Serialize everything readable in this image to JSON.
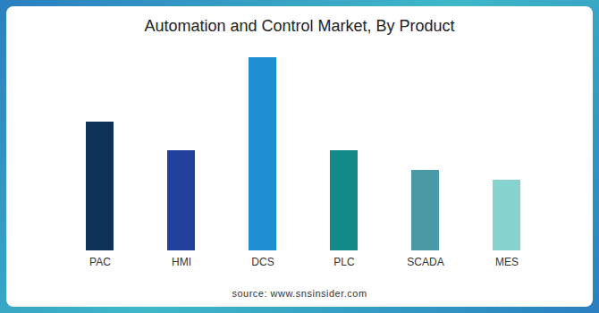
{
  "chart_data": {
    "type": "bar",
    "title": "Automation and Control Market, By Product",
    "categories": [
      "PAC",
      "HMI",
      "DCS",
      "PLC",
      "SCADA",
      "MES"
    ],
    "values": [
      144,
      112,
      216,
      112,
      90,
      79
    ],
    "colors": [
      "#0d3255",
      "#22419a",
      "#1f8fd3",
      "#128a87",
      "#4a9aa8",
      "#86d2cf"
    ],
    "ylim": [
      0,
      216
    ],
    "tick_labels": "x",
    "grid": false,
    "source": "source: www.snsinsider.com"
  }
}
